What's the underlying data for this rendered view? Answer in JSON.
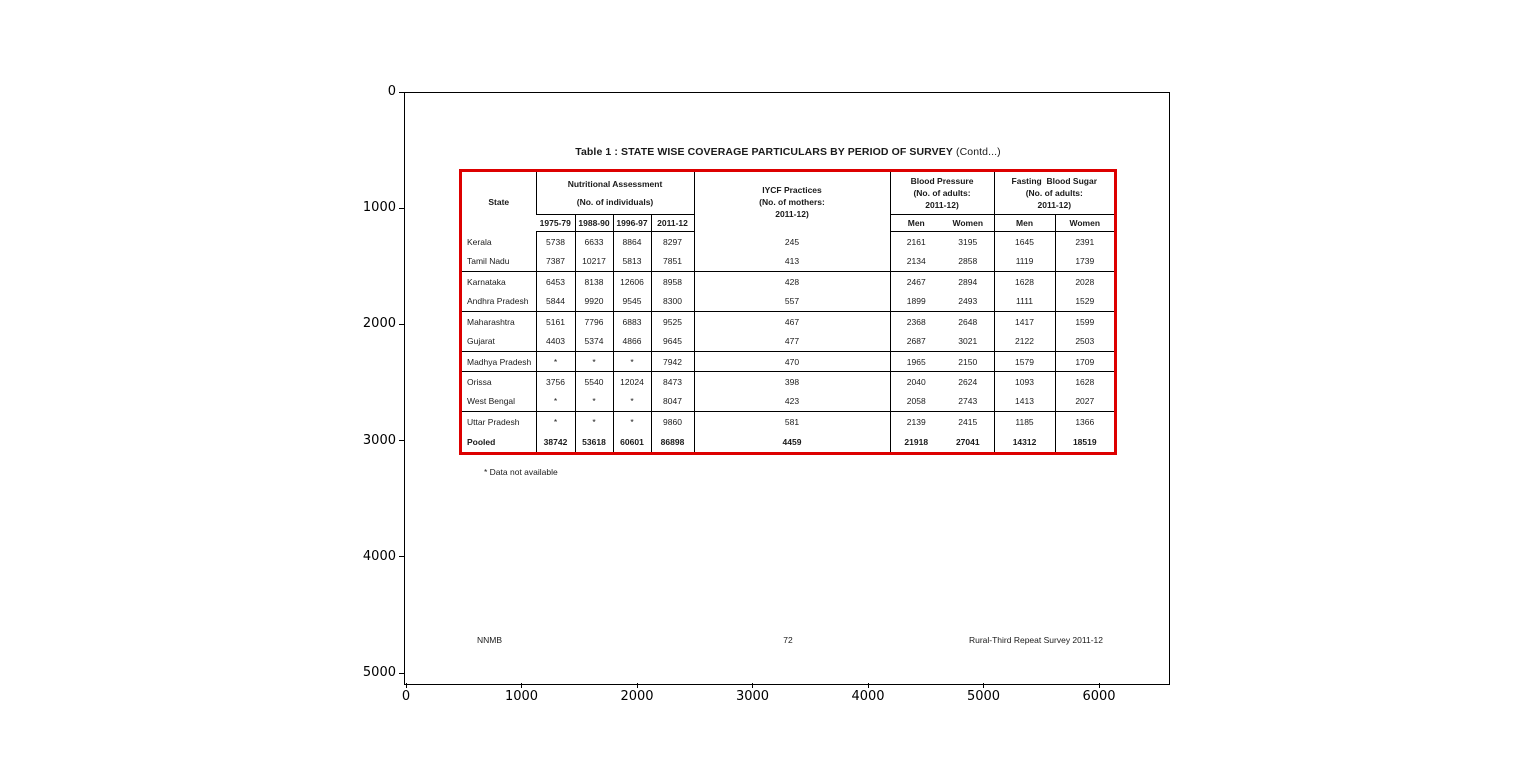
{
  "axes": {
    "x_ticks": [
      "0",
      "1000",
      "2000",
      "3000",
      "4000",
      "5000",
      "6000"
    ],
    "y_ticks": [
      "0",
      "1000",
      "2000",
      "3000",
      "4000",
      "5000"
    ]
  },
  "page": {
    "title_bold": "Table 1 : STATE WISE COVERAGE PARTICULARS BY PERIOD OF SURVEY",
    "title_suffix": " (Contd...)",
    "footnote": "* Data not available",
    "footer_left": "NNMB",
    "footer_center": "72",
    "footer_right": "Rural-Third Repeat Survey 2011-12",
    "border_color": "#dd0000"
  },
  "table": {
    "header": {
      "state": "State",
      "nutritional": [
        "Nutritional Assessment",
        "(No. of individuals)"
      ],
      "iycf": [
        "IYCF Practices",
        "(No. of mothers:",
        "2011-12)"
      ],
      "blood_pressure": [
        "Blood Pressure",
        "(No. of adults:",
        "2011-12)"
      ],
      "fasting": [
        "Fasting  Blood Sugar",
        "(No. of adults:",
        "2011-12)"
      ],
      "years": [
        "1975-79",
        "1988-90",
        "1996-97",
        "2011-12"
      ],
      "men_women": [
        "Men",
        "Women",
        "Men",
        "Women"
      ]
    },
    "rows": [
      {
        "state": "Kerala",
        "values": [
          "5738",
          "6633",
          "8864",
          "8297",
          "245",
          "2161",
          "3195",
          "1645",
          "2391"
        ],
        "bold": false,
        "group_end": false
      },
      {
        "state": "Tamil Nadu",
        "values": [
          "7387",
          "10217",
          "5813",
          "7851",
          "413",
          "2134",
          "2858",
          "1119",
          "1739"
        ],
        "bold": false,
        "group_end": true
      },
      {
        "state": "Karnataka",
        "values": [
          "6453",
          "8138",
          "12606",
          "8958",
          "428",
          "2467",
          "2894",
          "1628",
          "2028"
        ],
        "bold": false,
        "group_end": false
      },
      {
        "state": "Andhra Pradesh",
        "values": [
          "5844",
          "9920",
          "9545",
          "8300",
          "557",
          "1899",
          "2493",
          "1111",
          "1529"
        ],
        "bold": false,
        "group_end": true
      },
      {
        "state": "Maharashtra",
        "values": [
          "5161",
          "7796",
          "6883",
          "9525",
          "467",
          "2368",
          "2648",
          "1417",
          "1599"
        ],
        "bold": false,
        "group_end": false
      },
      {
        "state": "Gujarat",
        "values": [
          "4403",
          "5374",
          "4866",
          "9645",
          "477",
          "2687",
          "3021",
          "2122",
          "2503"
        ],
        "bold": false,
        "group_end": true
      },
      {
        "state": "Madhya Pradesh",
        "values": [
          "*",
          "*",
          "*",
          "7942",
          "470",
          "1965",
          "2150",
          "1579",
          "1709"
        ],
        "bold": false,
        "group_end": true
      },
      {
        "state": "Orissa",
        "values": [
          "3756",
          "5540",
          "12024",
          "8473",
          "398",
          "2040",
          "2624",
          "1093",
          "1628"
        ],
        "bold": false,
        "group_end": false
      },
      {
        "state": "West Bengal",
        "values": [
          "*",
          "*",
          "*",
          "8047",
          "423",
          "2058",
          "2743",
          "1413",
          "2027"
        ],
        "bold": false,
        "group_end": true
      },
      {
        "state": "Uttar Pradesh",
        "values": [
          "*",
          "*",
          "*",
          "9860",
          "581",
          "2139",
          "2415",
          "1185",
          "1366"
        ],
        "bold": false,
        "group_end": false
      },
      {
        "state": "Pooled",
        "values": [
          "38742",
          "53618",
          "60601",
          "86898",
          "4459",
          "21918",
          "27041",
          "14312",
          "18519"
        ],
        "bold": true,
        "group_end": false
      }
    ]
  }
}
